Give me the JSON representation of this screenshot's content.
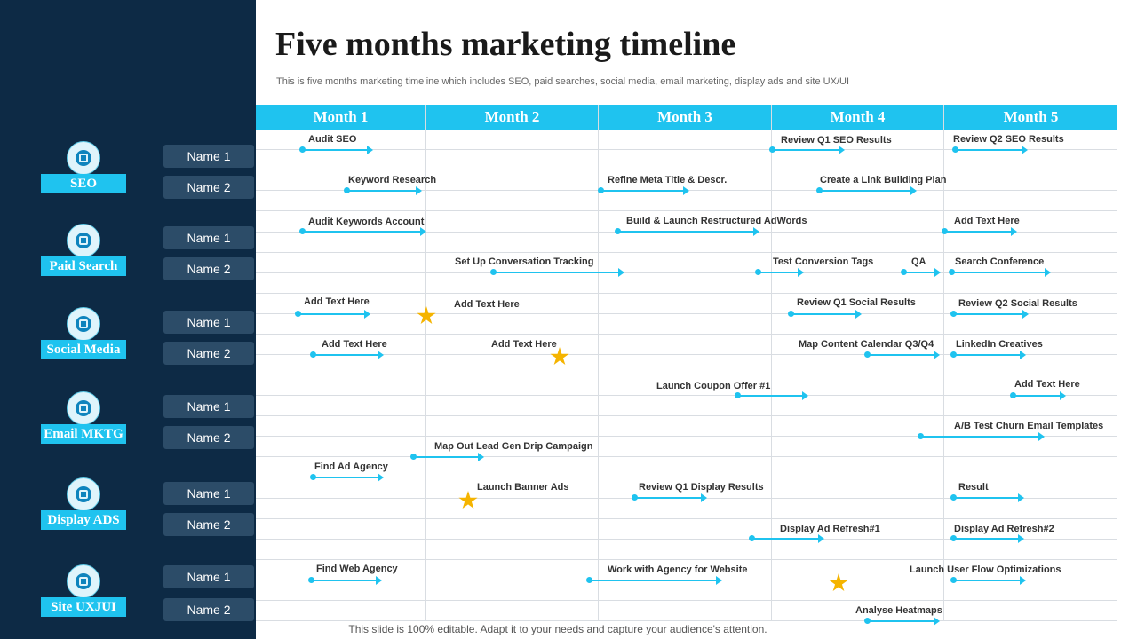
{
  "title": "Five months marketing timeline",
  "subtitle": "This is five  months marketing timeline which includes SEO, paid searches, social media, email marketing, display ads and site UX/UI",
  "footer": "This slide is 100% editable. Adapt it to your needs and capture your audience's attention.",
  "months": [
    "Month 1",
    "Month 2",
    "Month 3",
    "Month 4",
    "Month 5"
  ],
  "categories": [
    {
      "label": "SEO",
      "icon": "search-icon"
    },
    {
      "label": "Paid Search",
      "icon": "monitor-icon"
    },
    {
      "label": "Social Media",
      "icon": "social-icon"
    },
    {
      "label": "Email MKTG",
      "icon": "email-icon"
    },
    {
      "label": "Display ADS",
      "icon": "display-ads-icon"
    },
    {
      "label": "Site UXJUI",
      "icon": "website-icon"
    }
  ],
  "name_labels": [
    "Name 1",
    "Name 2"
  ],
  "tasks": [
    "Audit SEO",
    "Review Q1 SEO  Results",
    "Review Q2 SEO Results",
    "Keyword Research",
    "Refine Meta Title & Descr.",
    "Create a Link Building Plan",
    "Audit Keywords Account",
    "Build & Launch Restructured AdWords",
    "Add Text Here",
    "Set Up Conversation Tracking",
    "Test Conversion Tags",
    "QA",
    "Search Conference",
    "Add Text Here",
    "Add Text Here",
    "Review Q1 Social Results",
    "Review Q2 Social Results",
    "Add Text Here",
    "Add Text Here",
    "Map Content Calendar Q3/Q4",
    "LinkedIn Creatives",
    "Launch Coupon Offer #1",
    "Add Text Here",
    "A/B Test Churn Email Templates",
    "Map Out Lead Gen Drip Campaign",
    "Find Ad Agency",
    "Launch Banner Ads",
    "Review Q1 Display Results",
    "Result",
    "Display Ad Refresh#1",
    "Display Ad Refresh#2",
    "Find Web Agency",
    "Work with Agency for Website",
    "Launch User Flow Optimizations",
    "Analyse Heatmaps"
  ]
}
